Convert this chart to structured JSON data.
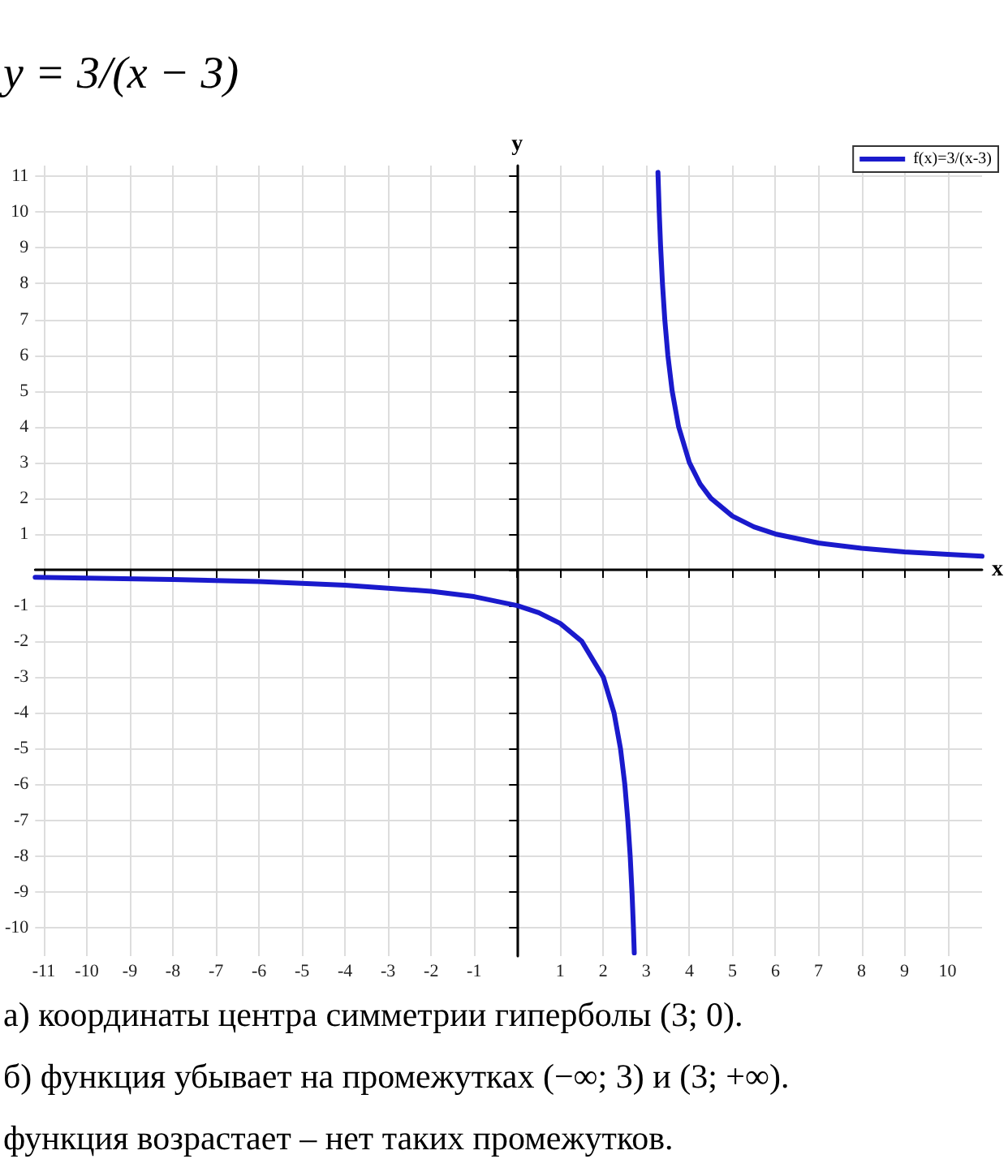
{
  "chart_data": {
    "type": "line",
    "title": "y = 3/(x − 3)",
    "xlabel": "x",
    "ylabel": "y",
    "x": [
      -11.2,
      -10,
      -8,
      -6,
      -4,
      -2,
      -1,
      0,
      0.5,
      1,
      1.5,
      2,
      2.25,
      2.4,
      2.5,
      2.57,
      2.625,
      2.67,
      2.7,
      2.72,
      3,
      3.27,
      3.3,
      3.33,
      3.375,
      3.43,
      3.5,
      3.6,
      3.75,
      4,
      4.25,
      4.5,
      5,
      5.5,
      6,
      7,
      8,
      9,
      10,
      10.8
    ],
    "series": [
      {
        "name": "f(x)=3/(x-3)",
        "color": "#1a1acc",
        "values": [
          -0.21,
          -0.23,
          -0.27,
          -0.33,
          -0.43,
          -0.6,
          -0.75,
          -1,
          -1.2,
          -1.5,
          -2,
          -3,
          -4,
          -5,
          -6,
          -7,
          -8,
          -9.09,
          -10,
          -10.71,
          null,
          11.11,
          10,
          9.09,
          8,
          6.98,
          6,
          5,
          4,
          3,
          2.4,
          2,
          1.5,
          1.2,
          1,
          0.75,
          0.6,
          0.5,
          0.43,
          0.38
        ]
      }
    ],
    "xlim": [
      -11.2,
      10.8
    ],
    "ylim": [
      -10.8,
      11.3
    ],
    "xticks": [
      -11,
      -10,
      -9,
      -8,
      -7,
      -6,
      -5,
      -4,
      -3,
      -2,
      -1,
      {
        "value": 0,
        "label": null
      },
      1,
      2,
      3,
      4,
      5,
      6,
      7,
      8,
      9,
      10
    ],
    "yticks": [
      -10,
      -9,
      -8,
      -7,
      -6,
      -5,
      -4,
      -3,
      -2,
      -1,
      {
        "value": 0,
        "label": null
      },
      1,
      2,
      3,
      4,
      5,
      6,
      7,
      8,
      9,
      10,
      11
    ],
    "grid": true,
    "legend": "top right",
    "marker": "none",
    "line_style": "solid",
    "annotations": [
      "а) координаты центра симметрии гиперболы (3; 0).",
      "б) функция убывает на промежутках (−∞; 3) и (3; +∞).",
      "функция возрастает – нет таких промежутков."
    ]
  }
}
